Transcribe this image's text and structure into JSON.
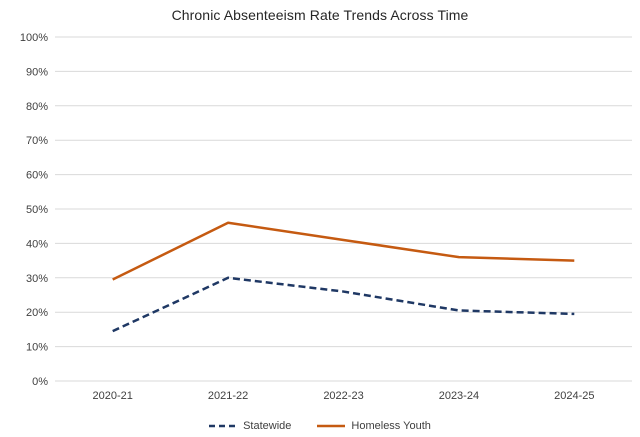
{
  "chart_data": {
    "type": "line",
    "title": "Chronic Absenteeism Rate Trends Across Time",
    "categories": [
      "2020-21",
      "2021-22",
      "2022-23",
      "2023-24",
      "2024-25"
    ],
    "series": [
      {
        "name": "Statewide",
        "values": [
          14.5,
          30,
          26,
          20.5,
          19.5
        ],
        "color": "#1F3864",
        "style": "dashed"
      },
      {
        "name": "Homeless Youth",
        "values": [
          29.5,
          46,
          41,
          36,
          35
        ],
        "color": "#C55A11",
        "style": "solid"
      }
    ],
    "ylabel": "",
    "xlabel": "",
    "ylim": [
      0,
      100
    ],
    "y_tick_step": 10,
    "y_tick_suffix": "%",
    "grid": "horizontal-only",
    "gridline_color": "#D9D9D9",
    "label_color": "#404040",
    "title_color": "#262626",
    "background": "#FFFFFF",
    "legend_position": "bottom-center"
  }
}
